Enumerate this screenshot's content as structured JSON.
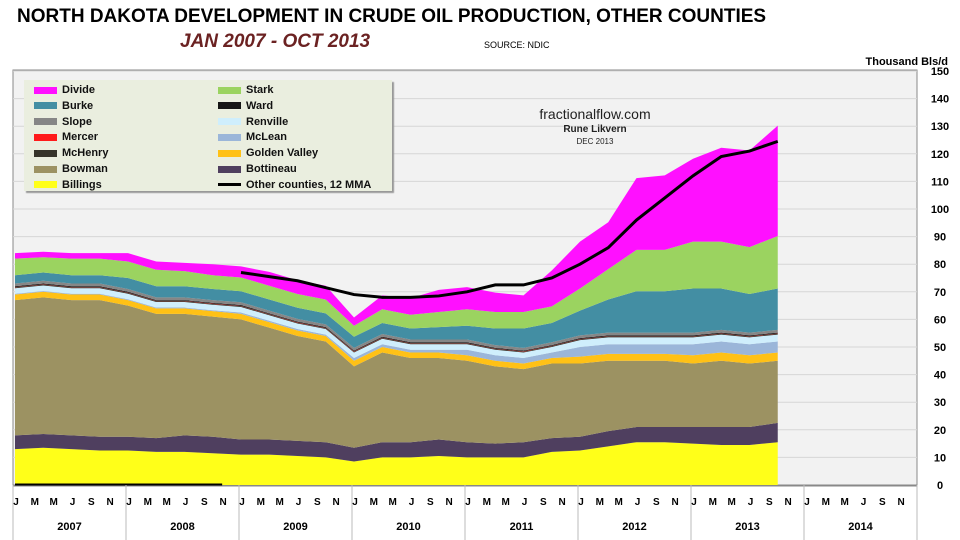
{
  "chart_data": {
    "type": "area",
    "stacked": true,
    "title": "NORTH DAKOTA DEVELOPMENT IN CRUDE OIL PRODUCTION, OTHER COUNTIES",
    "subtitle": "JAN 2007 - OCT 2013",
    "source": "SOURCE: NDIC",
    "ylabel": "Thousand Bls/d",
    "ylim": [
      0,
      150
    ],
    "yticks": [
      0,
      10,
      20,
      30,
      40,
      50,
      60,
      70,
      80,
      90,
      100,
      110,
      120,
      130,
      140,
      150
    ],
    "x_months_from_jan2007": [
      0,
      3,
      6,
      9,
      12,
      15,
      18,
      21,
      24,
      27,
      30,
      33,
      36,
      39,
      42,
      45,
      48,
      51,
      54,
      57,
      60,
      63,
      66,
      69,
      72,
      75,
      78,
      81
    ],
    "month_tick_labels": [
      "J",
      "M",
      "M",
      "J",
      "S",
      "N"
    ],
    "years": [
      "2007",
      "2008",
      "2009",
      "2010",
      "2011",
      "2012",
      "2013",
      "2014"
    ],
    "grid": true,
    "legend_placement": "top-left",
    "watermark": {
      "site": "fractionalflow.com",
      "author": "Rune Likvern",
      "date": "DEC 2013"
    },
    "series": [
      {
        "name": "Billings",
        "color": "#ffff19",
        "values": [
          13,
          13.5,
          13,
          12.5,
          12.5,
          12,
          12,
          11.5,
          11,
          11,
          10.5,
          10,
          8.5,
          10,
          10,
          10.5,
          10,
          10,
          10,
          12,
          12.5,
          14,
          15.5,
          15.5,
          15,
          14.5,
          14.5,
          15.5
        ]
      },
      {
        "name": "Bottineau",
        "color": "#4f3f5f",
        "values": [
          5,
          5,
          5,
          5,
          5,
          5,
          6,
          6,
          5.5,
          5.5,
          5.5,
          5.5,
          5,
          5.5,
          5.5,
          6,
          5.5,
          5,
          5.5,
          5,
          5,
          5.5,
          5.5,
          5.5,
          6,
          6.5,
          6.5,
          7
        ]
      },
      {
        "name": "Bowman",
        "color": "#9c9262",
        "values": [
          49,
          49.5,
          49,
          49.5,
          47.5,
          45,
          44,
          43.5,
          43.5,
          40.5,
          38,
          36.5,
          29.5,
          32.5,
          30.5,
          29.5,
          29.5,
          28,
          26.5,
          27,
          26.5,
          25.5,
          24,
          24,
          23,
          24,
          23,
          22.5
        ]
      },
      {
        "name": "Golden Valley",
        "color": "#ffc116",
        "values": [
          2,
          2,
          2,
          2,
          2,
          2,
          2,
          2,
          2,
          2,
          2,
          2,
          2,
          2,
          2,
          2,
          2,
          2,
          2,
          2,
          2.5,
          2.5,
          2.5,
          2.5,
          3,
          3,
          3,
          3
        ]
      },
      {
        "name": "McLean",
        "color": "#9bb6d9",
        "values": [
          0.3,
          0.3,
          0.3,
          0.3,
          0.3,
          0.3,
          0.3,
          0.3,
          0.5,
          0.5,
          0.5,
          0.5,
          1,
          1,
          1,
          1,
          2,
          2,
          2,
          2,
          3.5,
          3.5,
          3.5,
          3.5,
          4,
          4,
          4,
          4
        ]
      },
      {
        "name": "Renville",
        "color": "#cfeefc",
        "values": [
          2,
          2,
          2,
          2,
          2,
          2,
          2,
          2,
          2,
          2,
          2,
          2,
          2,
          2,
          2,
          2,
          2,
          2,
          2,
          2,
          2.5,
          2.5,
          2.5,
          2.5,
          2.5,
          2.5,
          2.5,
          2.5
        ]
      },
      {
        "name": "McHenry",
        "color": "#36342a",
        "values": [
          0.3,
          0.3,
          0.3,
          0.3,
          0.3,
          0.3,
          0.3,
          0.3,
          0.3,
          0.3,
          0.3,
          0.3,
          0.3,
          0.3,
          0.3,
          0.3,
          0.3,
          0.3,
          0.3,
          0.3,
          0.3,
          0.3,
          0.3,
          0.3,
          0.3,
          0.3,
          0.3,
          0.3
        ]
      },
      {
        "name": "Mercer",
        "color": "#ff1a1a",
        "values": [
          0.1,
          0.1,
          0.1,
          0.1,
          0.1,
          0.1,
          0.1,
          0.1,
          0.1,
          0.1,
          0.1,
          0.1,
          0.1,
          0.1,
          0.1,
          0.1,
          0.1,
          0.1,
          0.1,
          0.1,
          0.1,
          0.1,
          0.1,
          0.1,
          0.1,
          0.1,
          0.1,
          0.1
        ]
      },
      {
        "name": "Ward",
        "color": "#151515",
        "values": [
          0.3,
          0.3,
          0.3,
          0.3,
          0.3,
          0.3,
          0.3,
          0.3,
          0.3,
          0.3,
          0.3,
          0.3,
          0.3,
          0.3,
          0.3,
          0.3,
          0.3,
          0.3,
          0.3,
          0.3,
          0.3,
          0.3,
          0.3,
          0.3,
          0.3,
          0.3,
          0.3,
          0.3
        ]
      },
      {
        "name": "Slope",
        "color": "#868686",
        "values": [
          1,
          1,
          1,
          1,
          1,
          1,
          1,
          1,
          1,
          1,
          1,
          1,
          1,
          1,
          1,
          1,
          1,
          1,
          1,
          1,
          1,
          1,
          1,
          1,
          1,
          1,
          1,
          1
        ]
      },
      {
        "name": "Burke",
        "color": "#438ea3",
        "values": [
          3,
          3,
          3,
          3,
          4,
          4,
          4,
          4,
          4,
          4,
          4,
          4,
          4,
          4,
          4,
          4.5,
          5,
          6,
          7,
          7,
          9,
          12,
          15,
          15,
          16,
          15,
          14,
          15
        ]
      },
      {
        "name": "Stark",
        "color": "#9bd360",
        "values": [
          6,
          5.5,
          6,
          6,
          6,
          6,
          5.5,
          5,
          5,
          5,
          5,
          5,
          4,
          5,
          5,
          5.5,
          6,
          6,
          6,
          6,
          8,
          11,
          15,
          15,
          17,
          17,
          17,
          19
        ]
      },
      {
        "name": "Divide",
        "color": "#ff10ff",
        "values": [
          2,
          2,
          2,
          2,
          3,
          3,
          3,
          4,
          4,
          5,
          5,
          5,
          3,
          5,
          6,
          8,
          8,
          7,
          6,
          13,
          17,
          17,
          26,
          27,
          30,
          34,
          35,
          40
        ]
      }
    ],
    "line_series": {
      "name": "Other counties, 12 MMA",
      "color": "#000000",
      "values": [
        0,
        0,
        0,
        0,
        0,
        0,
        0,
        0,
        77,
        75.5,
        74,
        71.5,
        69,
        68,
        68,
        68.5,
        70,
        72.5,
        72.5,
        75,
        80,
        86,
        96,
        104,
        112,
        119,
        121,
        124.5
      ]
    },
    "legend_order": [
      "Divide",
      "Burke",
      "Slope",
      "Mercer",
      "McHenry",
      "Bowman",
      "Billings",
      "Stark",
      "Ward",
      "Renville",
      "McLean",
      "Golden Valley",
      "Bottineau"
    ]
  }
}
